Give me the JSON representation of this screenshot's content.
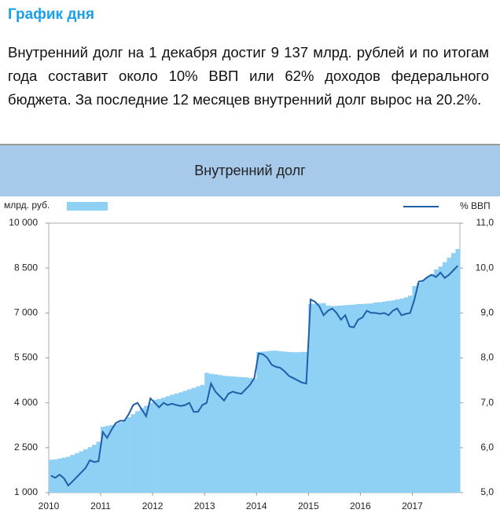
{
  "header": {
    "title": "График дня",
    "text": "Внутренний долг на 1 декабря достиг 9 137 млрд. рублей и по итогам года составит около 10% ВВП или 62% доходов федерального бюджета. За последние 12 месяцев внутренний долг вырос на 20.2%."
  },
  "chart_data": {
    "type": "bar-line",
    "title": "Внутренний долг",
    "categories": [
      "2010",
      null,
      null,
      null,
      null,
      null,
      null,
      null,
      null,
      null,
      null,
      null,
      "2011",
      null,
      null,
      null,
      null,
      null,
      null,
      null,
      null,
      null,
      null,
      null,
      "2012",
      null,
      null,
      null,
      null,
      null,
      null,
      null,
      null,
      null,
      null,
      null,
      "2013",
      null,
      null,
      null,
      null,
      null,
      null,
      null,
      null,
      null,
      null,
      null,
      "2014",
      null,
      null,
      null,
      null,
      null,
      null,
      null,
      null,
      null,
      null,
      null,
      "2015",
      null,
      null,
      null,
      null,
      null,
      null,
      null,
      null,
      null,
      null,
      null,
      "2016",
      null,
      null,
      null,
      null,
      null,
      null,
      null,
      null,
      null,
      null,
      null,
      "2017",
      null,
      null,
      null,
      null,
      null,
      null,
      null,
      null,
      null,
      null
    ],
    "series": [
      {
        "name": "млрд. руб.",
        "color": "#8fd0f5",
        "values": [
          2100,
          2110,
          2140,
          2170,
          2200,
          2260,
          2320,
          2380,
          2450,
          2520,
          2600,
          2700,
          3200,
          3230,
          3260,
          3300,
          3350,
          3430,
          3520,
          3620,
          3720,
          3820,
          3900,
          4000,
          4100,
          4130,
          4170,
          4220,
          4270,
          4310,
          4350,
          4400,
          4450,
          4500,
          4550,
          4600,
          5000,
          4970,
          4950,
          4930,
          4900,
          4890,
          4880,
          4870,
          4860,
          4850,
          4830,
          4800,
          5700,
          5710,
          5720,
          5740,
          5740,
          5720,
          5710,
          5700,
          5690,
          5690,
          5700,
          5700,
          7300,
          7310,
          7320,
          7330,
          7250,
          7230,
          7240,
          7250,
          7260,
          7270,
          7280,
          7300,
          7300,
          7310,
          7320,
          7350,
          7360,
          7380,
          7400,
          7420,
          7450,
          7480,
          7520,
          7580,
          7900,
          8000,
          8100,
          8200,
          8300,
          8450,
          8550,
          8700,
          8850,
          9000,
          9137
        ]
      },
      {
        "name": "% ВВП",
        "color": "#1f5fa8",
        "axis": "y2",
        "values": [
          5.38,
          5.33,
          5.4,
          5.32,
          5.16,
          5.25,
          5.35,
          5.45,
          5.55,
          5.72,
          5.68,
          5.7,
          6.35,
          6.22,
          6.4,
          6.55,
          6.6,
          6.6,
          6.75,
          6.95,
          7.0,
          6.85,
          6.7,
          7.1,
          7.0,
          6.9,
          7.0,
          6.95,
          6.98,
          6.95,
          6.93,
          6.95,
          7.0,
          6.8,
          6.8,
          6.95,
          7.0,
          7.43,
          7.25,
          7.15,
          7.05,
          7.2,
          7.25,
          7.22,
          7.2,
          7.3,
          7.4,
          7.55,
          8.1,
          8.08,
          8.0,
          7.85,
          7.8,
          7.78,
          7.7,
          7.6,
          7.55,
          7.5,
          7.45,
          7.43,
          9.3,
          9.25,
          9.15,
          8.95,
          9.05,
          9.1,
          9.0,
          8.85,
          8.95,
          8.7,
          8.68,
          8.85,
          8.9,
          9.05,
          9.0,
          9.0,
          8.98,
          9.0,
          8.95,
          9.05,
          9.1,
          8.95,
          8.98,
          9.0,
          9.3,
          9.7,
          9.72,
          9.8,
          9.85,
          9.8,
          9.9,
          9.78,
          9.85,
          9.95,
          10.05
        ]
      }
    ],
    "ylim": [
      1000,
      10000
    ],
    "yticks": [
      {
        "value": 1000,
        "label": "1 000"
      },
      {
        "value": 2500,
        "label": "2 500"
      },
      {
        "value": 4000,
        "label": "4 000"
      },
      {
        "value": 5500,
        "label": "5 500"
      },
      {
        "value": 7000,
        "label": "7 000"
      },
      {
        "value": 8500,
        "label": "8 500"
      },
      {
        "value": 10000,
        "label": "10 000"
      }
    ],
    "y2lim": [
      5,
      11
    ],
    "y2ticks": [
      {
        "value": 5,
        "label": "5,0"
      },
      {
        "value": 6,
        "label": "6,0"
      },
      {
        "value": 7,
        "label": "7,0"
      },
      {
        "value": 8,
        "label": "8,0"
      },
      {
        "value": 9,
        "label": "9,0"
      },
      {
        "value": 10,
        "label": "10,0"
      },
      {
        "value": 11,
        "label": "11,0"
      }
    ]
  }
}
